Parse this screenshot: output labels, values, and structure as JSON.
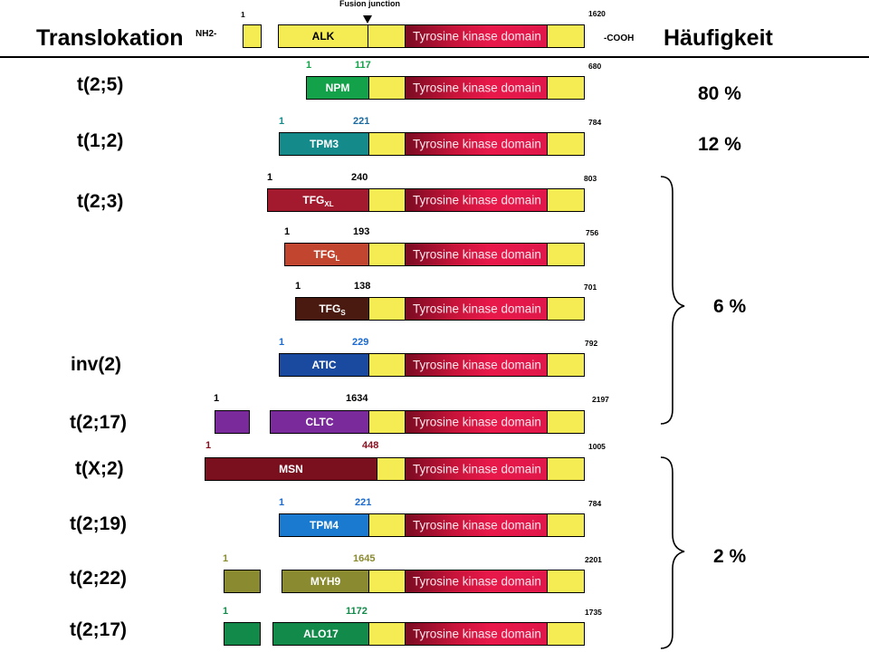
{
  "header": {
    "translocation": "Translokation",
    "frequency": "Häufigkeit",
    "nh2": "NH2-",
    "cooh": "-COOH",
    "fusion_junction": "Fusion junction",
    "alk_start": "1",
    "alk_end": "1620",
    "alk_label": "ALK",
    "tk_label": "Tyrosine kinase domain"
  },
  "rows": [
    {
      "translocation": "t(2;5)",
      "partner": "NPM",
      "start": "1",
      "junction": "117",
      "end": "680"
    },
    {
      "translocation": "t(1;2)",
      "partner": "TPM3",
      "start": "1",
      "junction": "221",
      "end": "784"
    },
    {
      "translocation": "t(2;3)",
      "partner": "TFG",
      "partner_sub": "XL",
      "start": "1",
      "junction": "240",
      "end": "803"
    },
    {
      "translocation": "",
      "partner": "TFG",
      "partner_sub": "L",
      "start": "1",
      "junction": "193",
      "end": "756"
    },
    {
      "translocation": "",
      "partner": "TFG",
      "partner_sub": "S",
      "start": "1",
      "junction": "138",
      "end": "701"
    },
    {
      "translocation": "inv(2)",
      "partner": "ATIC",
      "start": "1",
      "junction": "229",
      "end": "792"
    },
    {
      "translocation": "t(2;17)",
      "partner": "CLTC",
      "start": "1",
      "junction": "1634",
      "end": "2197"
    },
    {
      "translocation": "t(X;2)",
      "partner": "MSN",
      "start": "1",
      "junction": "448",
      "end": "1005"
    },
    {
      "translocation": "t(2;19)",
      "partner": "TPM4",
      "start": "1",
      "junction": "221",
      "end": "784"
    },
    {
      "translocation": "t(2;22)",
      "partner": "MYH9",
      "start": "1",
      "junction": "1645",
      "end": "2201"
    },
    {
      "translocation": "t(2;17)",
      "partner": "ALO17",
      "start": "1",
      "junction": "1172",
      "end": "1735"
    }
  ],
  "frequencies": {
    "npm": "80 %",
    "tpm3": "12 %",
    "group1": "6 %",
    "group2": "2 %"
  },
  "colors": {
    "npm": "#13a24a",
    "tpm3": "#148a8a",
    "tfg_xl": "#a31a2e",
    "tfg_l": "#c24530",
    "tfg_s": "#4a1a10",
    "atic": "#1a4aa0",
    "cltc": "#7a2a9a",
    "msn": "#7a0f1e",
    "tpm4": "#1a7ad0",
    "myh9": "#8a8a30",
    "alo17": "#128a4a",
    "yellow": "#f4ec52"
  }
}
